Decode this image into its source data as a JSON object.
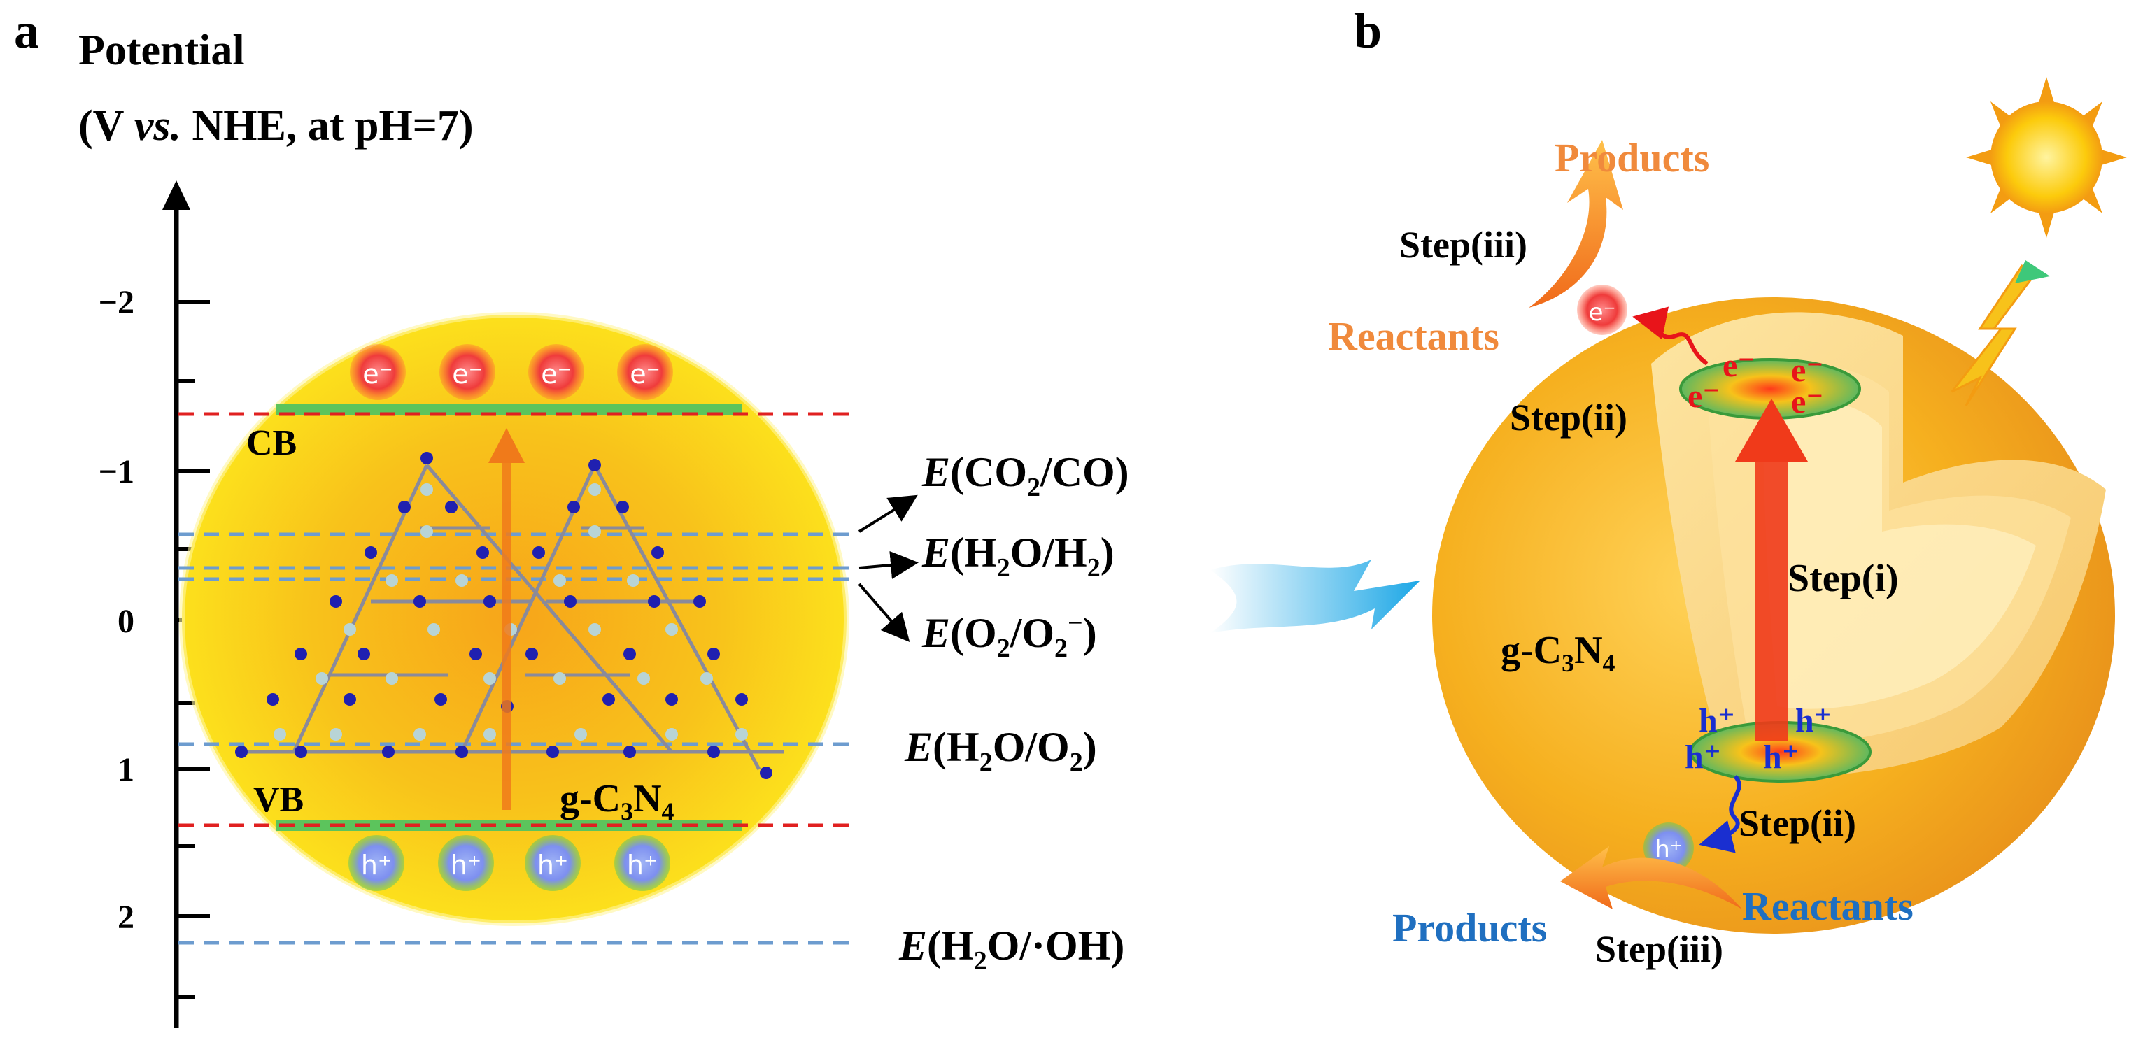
{
  "panel_a": {
    "label": "a",
    "axis_title_line1": "Potential",
    "axis_title_line2_pre": "(V ",
    "axis_title_line2_italic": "vs.",
    "axis_title_line2_post": " NHE, at pH=7)",
    "ticks": [
      "−2",
      "−1",
      "0",
      "1",
      "2"
    ],
    "cb_label": "CB",
    "vb_label": "VB",
    "electron": "e⁻",
    "hole": "h⁺",
    "material": {
      "g": "g-C",
      "sub1": "3",
      "n": "N",
      "sub2": "4"
    },
    "potentials": [
      {
        "E": "E",
        "text": "(CO",
        "sub": "2",
        "rest": "/CO)"
      },
      {
        "E": "E",
        "text": "(H",
        "sub": "2",
        "mid": "O/H",
        "sub2": "2",
        "rest": ")"
      },
      {
        "E": "E",
        "text": "(O",
        "sub": "2",
        "mid": "/O",
        "sub2": "2",
        "sup": "−",
        "rest": ")"
      },
      {
        "E": "E",
        "text": "(H",
        "sub": "2",
        "mid": "O/O",
        "sub2": "2",
        "rest": ")"
      },
      {
        "E": "E",
        "text": "(H",
        "sub": "2",
        "rest": "O/·OH)"
      }
    ]
  },
  "panel_b": {
    "label": "b",
    "products_top": "Products",
    "reactants_top": "Reactants",
    "step_iii": "Step(iii)",
    "step_ii": "Step(ii)",
    "step_i": "Step(i)",
    "products_bottom": "Products",
    "reactants_bottom": "Reactants",
    "electron": "e⁻",
    "electron_small": "e⁻",
    "hole": "h⁺",
    "material": {
      "g": "g-C",
      "sub1": "3",
      "n": "N",
      "sub2": "4"
    }
  },
  "colors": {
    "orange_label": "#f08a3c",
    "blue_label": "#1f6fc0",
    "red_dash": "#e02020",
    "blue_dash": "#6d9ccf",
    "green_band": "#5cc45c"
  }
}
